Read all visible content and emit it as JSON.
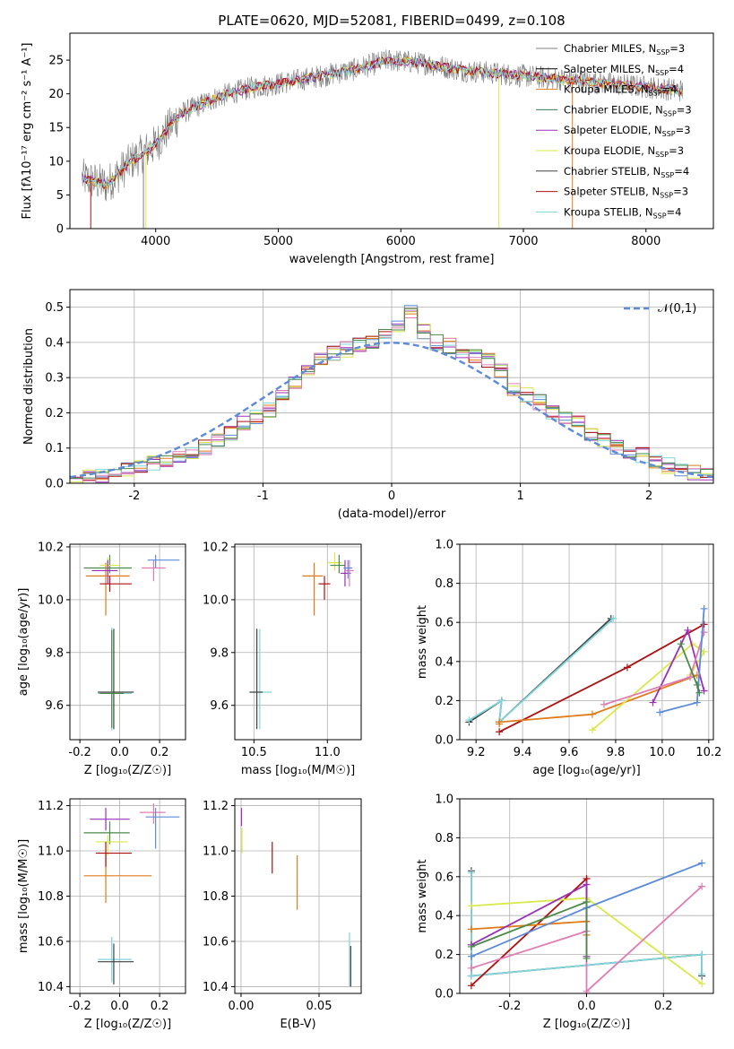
{
  "title": "PLATE=0620, MJD=52081, FIBERID=0499, z=0.108",
  "colors": {
    "chabrier_miles": "#808080",
    "salpeter_miles": "#000000",
    "kroupa_miles": "#e07b1a",
    "chabrier_elodie": "#3d7a5a",
    "salpeter_elodie": "#9b30b8",
    "kroupa_elodie": "#d9e84a",
    "chabrier_stelib": "#404040",
    "salpeter_stelib": "#b01010",
    "kroupa_stelib": "#7fd6dc",
    "blue": "#5b8bd9",
    "pink": "#e07bb4",
    "green": "#4a8a4a"
  },
  "chart_data": [
    {
      "type": "line",
      "id": "spectrum",
      "title": "PLATE=0620, MJD=52081, FIBERID=0499, z=0.108",
      "xlabel": "wavelength [Angstrom, rest frame]",
      "ylabel": "Flux [f",
      "ylabel_full": "Flux [fλ10⁻¹⁷ erg cm⁻² s⁻¹ A⁻¹]",
      "xlim": [
        3300,
        8550
      ],
      "ylim": [
        0,
        29
      ],
      "xticks": [
        4000,
        5000,
        6000,
        7000,
        8000
      ],
      "yticks": [
        0,
        5,
        10,
        15,
        20,
        25
      ],
      "grid": false,
      "legend_position": "upper-right",
      "legend": [
        {
          "name": "Chabrier MILES, N",
          "sub": "SSP",
          "suffix": "=3",
          "color": "#808080"
        },
        {
          "name": "Salpeter MILES, N",
          "sub": "SSP",
          "suffix": "=4",
          "color": "#000000"
        },
        {
          "name": "Kroupa MILES, N",
          "sub": "SSP",
          "suffix": "=4",
          "color": "#e07b1a"
        },
        {
          "name": "Chabrier ELODIE, N",
          "sub": "SSP",
          "suffix": "=3",
          "color": "#3d7a5a"
        },
        {
          "name": "Salpeter ELODIE, N",
          "sub": "SSP",
          "suffix": "=3",
          "color": "#9b30b8"
        },
        {
          "name": "Kroupa ELODIE, N",
          "sub": "SSP",
          "suffix": "=3",
          "color": "#d9e84a"
        },
        {
          "name": "Chabrier STELIB, N",
          "sub": "SSP",
          "suffix": "=4",
          "color": "#404040"
        },
        {
          "name": "Salpeter STELIB, N",
          "sub": "SSP",
          "suffix": "=3",
          "color": "#b01010"
        },
        {
          "name": "Kroupa STELIB, N",
          "sub": "SSP",
          "suffix": "=4",
          "color": "#7fd6dc"
        }
      ],
      "continuum": {
        "x": [
          3400,
          3600,
          3800,
          4000,
          4200,
          4500,
          4800,
          5000,
          5300,
          5600,
          5900,
          6200,
          6500,
          6800,
          7100,
          7400,
          7700,
          8000,
          8300
        ],
        "y": [
          7.5,
          6.5,
          10,
          12.5,
          17,
          19.5,
          21,
          21.5,
          22.5,
          23.5,
          25,
          24.5,
          23.5,
          23,
          22.5,
          22,
          21.5,
          21,
          20.5
        ]
      }
    },
    {
      "type": "histogram",
      "id": "residuals",
      "xlabel": "(data-model)/error",
      "ylabel": "Normed distribution",
      "xlim": [
        -2.5,
        2.5
      ],
      "ylim": [
        0,
        0.55
      ],
      "xticks": [
        -2,
        -1,
        0,
        1,
        2
      ],
      "yticks": [
        0.0,
        0.1,
        0.2,
        0.3,
        0.4,
        0.5
      ],
      "grid": true,
      "legend_position": "upper-right",
      "legend": [
        {
          "name": "𝒩(0,1)",
          "style": "dashed",
          "color": "#5b8bd9"
        }
      ],
      "bins": [
        -2.5,
        -2.4,
        -2.3,
        -2.2,
        -2.1,
        -2.0,
        -1.9,
        -1.8,
        -1.7,
        -1.6,
        -1.5,
        -1.4,
        -1.3,
        -1.2,
        -1.1,
        -1.0,
        -0.9,
        -0.8,
        -0.7,
        -0.6,
        -0.5,
        -0.4,
        -0.3,
        -0.2,
        -0.1,
        0.0,
        0.1,
        0.2,
        0.3,
        0.4,
        0.5,
        0.6,
        0.7,
        0.8,
        0.9,
        1.0,
        1.1,
        1.2,
        1.3,
        1.4,
        1.5,
        1.6,
        1.7,
        1.8,
        1.9,
        2.0,
        2.1,
        2.2,
        2.3,
        2.4,
        2.5
      ],
      "heights": [
        0.01,
        0.015,
        0.02,
        0.03,
        0.04,
        0.05,
        0.055,
        0.06,
        0.07,
        0.08,
        0.1,
        0.12,
        0.14,
        0.17,
        0.19,
        0.21,
        0.25,
        0.29,
        0.32,
        0.35,
        0.37,
        0.38,
        0.39,
        0.4,
        0.42,
        0.44,
        0.49,
        0.43,
        0.4,
        0.39,
        0.37,
        0.36,
        0.35,
        0.32,
        0.27,
        0.25,
        0.23,
        0.2,
        0.18,
        0.17,
        0.14,
        0.12,
        0.1,
        0.09,
        0.08,
        0.06,
        0.05,
        0.04,
        0.03,
        0.025
      ]
    },
    {
      "type": "scatter",
      "id": "age-vs-z",
      "xlabel": "Z [log",
      "xlabel_full": "Z [log₁₀(Z/Z☉)]",
      "ylabel": "age  [log",
      "ylabel_full": "age  [log₁₀(age/yr)]",
      "xlim": [
        -0.25,
        0.33
      ],
      "ylim": [
        9.47,
        10.21
      ],
      "xticks": [
        -0.2,
        0.0,
        0.2
      ],
      "yticks": [
        9.6,
        9.8,
        10.0,
        10.2
      ],
      "grid": true
    },
    {
      "type": "scatter",
      "id": "age-vs-mass",
      "xlabel": "mass [log",
      "xlabel_full": "mass [log₁₀(M/M☉)]",
      "xlim": [
        10.37,
        11.23
      ],
      "ylim": [
        9.47,
        10.21
      ],
      "xticks": [
        10.5,
        11.0
      ],
      "yticks": [
        9.6,
        9.8,
        10.0,
        10.2
      ],
      "grid": true
    },
    {
      "type": "line",
      "id": "massweight-vs-age",
      "xlabel": "age  [log",
      "xlabel_full": "age  [log₁₀(age/yr)]",
      "ylabel": "mass weight",
      "xlim": [
        9.13,
        10.22
      ],
      "ylim": [
        0,
        1
      ],
      "xticks": [
        9.2,
        9.4,
        9.6,
        9.8,
        10.0,
        10.2
      ],
      "yticks": [
        0.0,
        0.2,
        0.4,
        0.6,
        0.8,
        1.0
      ],
      "grid": true
    },
    {
      "type": "scatter",
      "id": "mass-vs-z",
      "xlabel": "Z [log",
      "xlabel_full": "Z [log₁₀(Z/Z☉)]",
      "ylabel": "mass [log",
      "ylabel_full": "mass [log₁₀(M/M☉)]",
      "xlim": [
        -0.25,
        0.33
      ],
      "ylim": [
        10.37,
        11.23
      ],
      "xticks": [
        -0.2,
        0.0,
        0.2
      ],
      "yticks": [
        10.4,
        10.6,
        10.8,
        11.0,
        11.2
      ],
      "grid": true
    },
    {
      "type": "scatter",
      "id": "mass-vs-ebv",
      "xlabel": "E(B-V)",
      "xlim": [
        -0.004,
        0.077
      ],
      "ylim": [
        10.37,
        11.23
      ],
      "xticks": [
        0.0,
        0.05
      ],
      "yticks": [
        10.4,
        10.6,
        10.8,
        11.0,
        11.2
      ],
      "grid": true
    },
    {
      "type": "line",
      "id": "massweight-vs-z",
      "xlabel": "Z [log",
      "xlabel_full": "Z [log₁₀(Z/Z☉)]",
      "ylabel": "mass weight",
      "xlim": [
        -0.33,
        0.33
      ],
      "ylim": [
        0,
        1
      ],
      "xticks": [
        -0.2,
        0.0,
        0.2
      ],
      "yticks": [
        0.0,
        0.2,
        0.4,
        0.6,
        0.8,
        1.0
      ],
      "grid": true
    }
  ]
}
